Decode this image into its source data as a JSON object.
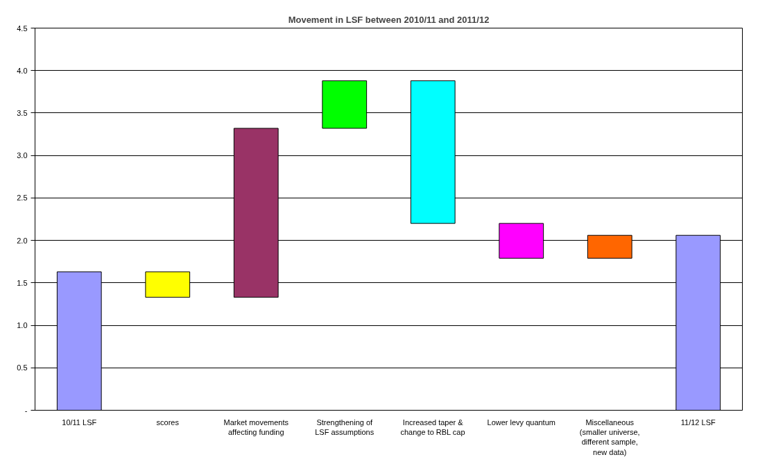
{
  "chart_data": {
    "type": "bar",
    "title": "Movement in LSF between 2010/11 and 2011/12",
    "categories": [
      "10/11 LSF",
      "scores",
      "Market movements affecting funding",
      "Strengthening of LSF assumptions",
      "Increased taper & change to RBL cap",
      "Lower levy quantum",
      "Miscellaneous (smaller universe, different sample, new data)",
      "11/12 LSF"
    ],
    "base": [
      0,
      1.63,
      1.33,
      3.32,
      3.88,
      2.2,
      1.79,
      0
    ],
    "values": [
      1.63,
      -0.3,
      1.99,
      0.56,
      -1.68,
      -0.41,
      0.27,
      2.06
    ],
    "colors": [
      "#9999ff",
      "#ffff00",
      "#993366",
      "#00ff00",
      "#00ffff",
      "#ff00ff",
      "#ff6600",
      "#9999ff"
    ],
    "ylim": [
      0,
      4.5
    ],
    "yticks": [
      {
        "value": 0,
        "label": "-"
      },
      0.5,
      {
        "value": 1,
        "label": "1.0"
      },
      1.5,
      {
        "value": 2,
        "label": "2.0"
      },
      2.5,
      {
        "value": 3,
        "label": "3.0"
      },
      3.5,
      {
        "value": 4,
        "label": "4.0"
      },
      4.5
    ],
    "grid": "y"
  }
}
